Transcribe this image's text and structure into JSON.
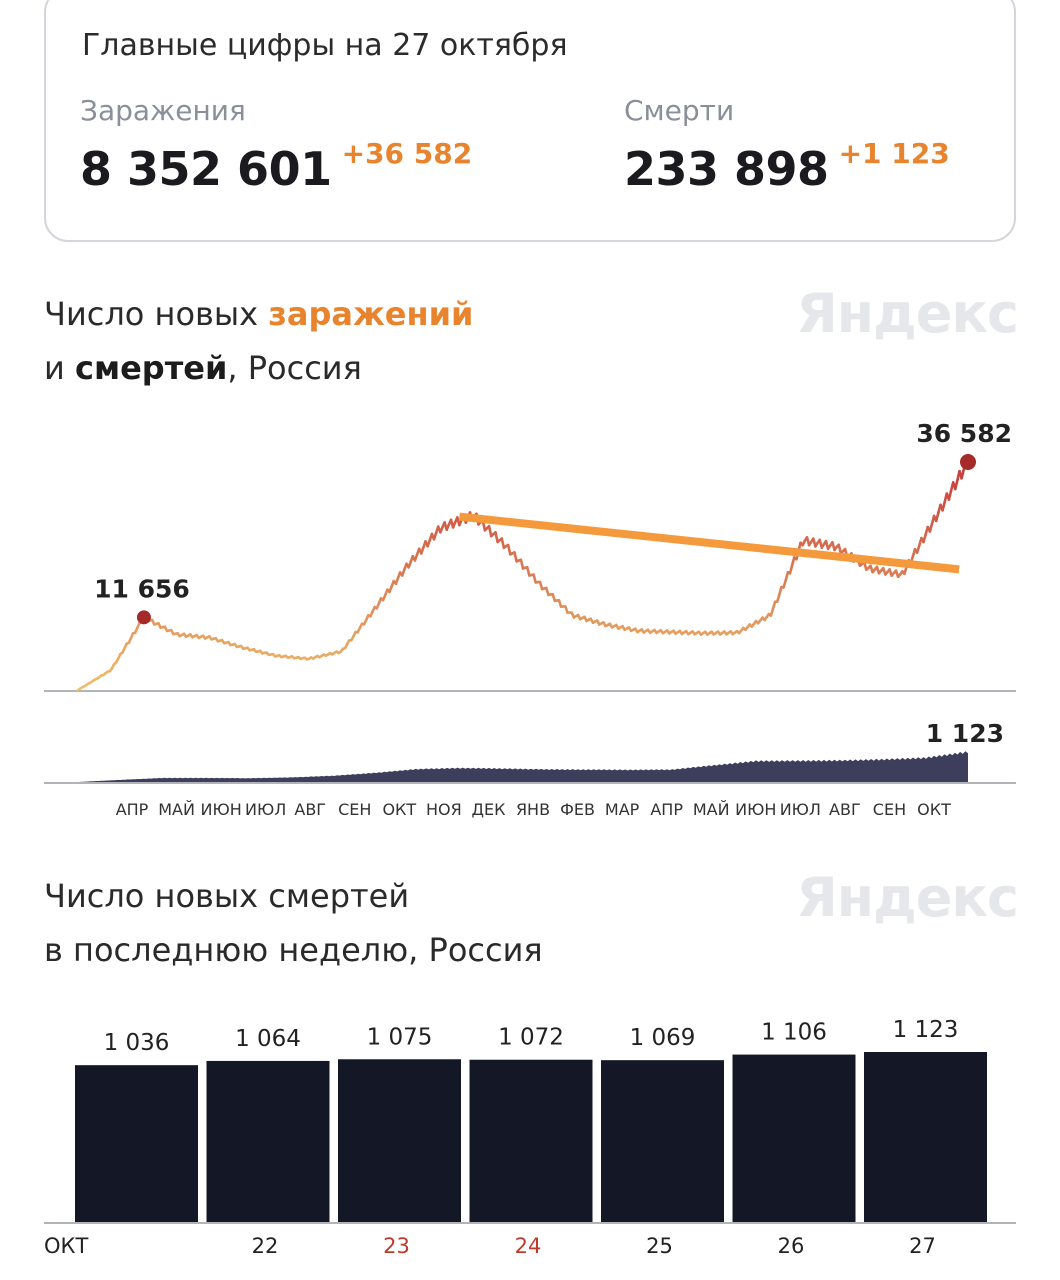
{
  "summary": {
    "title": "Главные цифры на 27 октября",
    "infections": {
      "label": "Заражения",
      "value": "8 352 601",
      "delta": "+36 582"
    },
    "deaths": {
      "label": "Смерти",
      "value": "233 898",
      "delta": "+1 123"
    }
  },
  "chart1": {
    "title_part1": "Число новых ",
    "title_highlight": "заражений",
    "title_part2": "и ",
    "title_bold": "смертей",
    "title_part3": ", Россия",
    "brand": "Яндекс"
  },
  "chart2": {
    "title_line1": "Число новых смертей",
    "title_line2": "в последнюю неделю, Россия",
    "brand": "Яндекс"
  },
  "colors": {
    "accent_orange": "#e8832e",
    "infections_low": "#f0c06a",
    "infections_high": "#c8413f",
    "deaths_area": "#3d3d5c",
    "bar": "#141826",
    "weekend_tick": "#c0392b",
    "trend_line": "#f59a3c"
  },
  "chart_data": [
    {
      "type": "line",
      "x_tick_labels": [
        "АПР",
        "МАЙ",
        "ИЮН",
        "ИЮЛ",
        "АВГ",
        "СЕН",
        "ОКТ",
        "НОЯ",
        "ДЕК",
        "ЯНВ",
        "ФЕВ",
        "МАР",
        "АПР",
        "МАЙ",
        "ИЮН",
        "ИЮЛ",
        "АВГ",
        "СЕН",
        "ОКТ"
      ],
      "series": [
        {
          "values": [
            0,
            3200,
            11656,
            8900,
            8400,
            6800,
            5500,
            5000,
            6200,
            13000,
            20000,
            26000,
            28000,
            23000,
            17000,
            12000,
            10500,
            9500,
            9300,
            9100,
            9200,
            12000,
            24000,
            23000,
            19500,
            18500,
            27500,
            36582
          ]
        },
        {
          "values": [
            0,
            80,
            150,
            150,
            140,
            170,
            230,
            340,
            480,
            520,
            500,
            470,
            460,
            450,
            460,
            620,
            780,
            790,
            800,
            840,
            900,
            1123
          ]
        }
      ],
      "annotations": [
        {
          "text": "11 656",
          "series": 0,
          "value": 11656
        },
        {
          "text": "36 582",
          "series": 0,
          "value": 36582
        },
        {
          "text": "1 123",
          "series": 1,
          "value": 1123
        }
      ],
      "trend_line": {
        "from": [
          0.26,
          27500
        ],
        "to": [
          0.99,
          20000
        ]
      }
    },
    {
      "type": "bar",
      "categories": [
        "ОКТ",
        "22",
        "23",
        "24",
        "25",
        "26",
        "27"
      ],
      "values": [
        1036,
        1064,
        1075,
        1072,
        1069,
        1106,
        1123
      ],
      "data_labels": [
        "1 036",
        "1 064",
        "1 075",
        "1 072",
        "1 069",
        "1 106",
        "1 123"
      ],
      "weekend": [
        false,
        false,
        true,
        true,
        false,
        false,
        false
      ]
    }
  ]
}
